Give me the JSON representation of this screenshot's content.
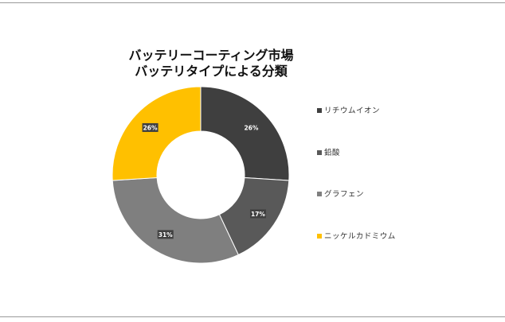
{
  "chart_data": {
    "type": "pie",
    "title_lines": [
      "バッテリーコーティング市場",
      "バッテリタイプによる分類"
    ],
    "series": [
      {
        "name": "リチウムイオン",
        "value": 26,
        "label": "26%",
        "color": "#3f3f3f"
      },
      {
        "name": "鉛酸",
        "value": 17,
        "label": "17%",
        "color": "#595959"
      },
      {
        "name": "グラフェン",
        "value": 31,
        "label": "31%",
        "color": "#7f7f7f"
      },
      {
        "name": "ニッケルカドミウム",
        "value": 26,
        "label": "26%",
        "color": "#ffc000"
      }
    ],
    "legend_position": "right"
  }
}
